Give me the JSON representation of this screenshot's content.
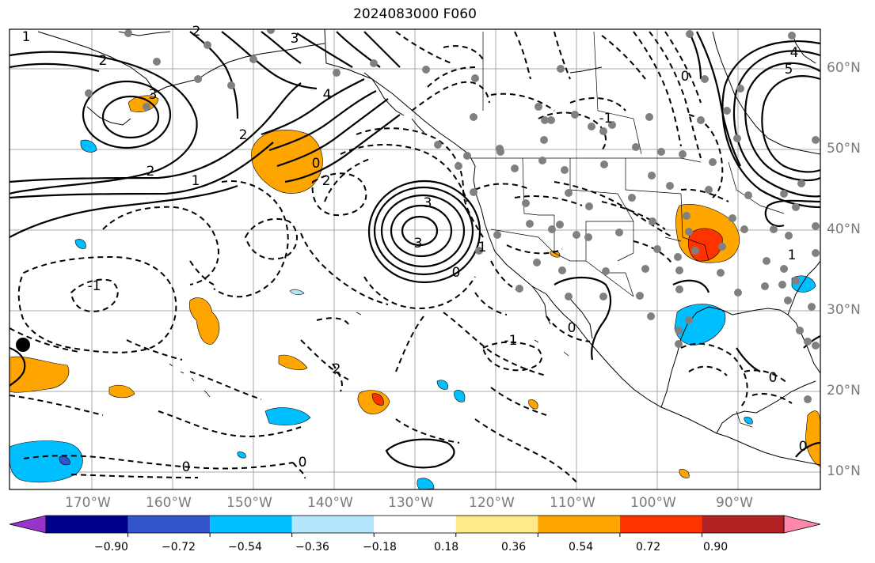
{
  "title": "2024083000 F060",
  "map": {
    "lat_labels": [
      "60°N",
      "50°N",
      "40°N",
      "30°N",
      "20°N",
      "10°N"
    ],
    "lon_labels": [
      "170°W",
      "160°W",
      "150°W",
      "140°W",
      "130°W",
      "120°W",
      "110°W",
      "100°W",
      "90°W"
    ],
    "contour_labels": [
      {
        "text": "1"
      },
      {
        "text": "2"
      },
      {
        "text": "2"
      },
      {
        "text": "3"
      },
      {
        "text": "3"
      },
      {
        "text": "4"
      },
      {
        "text": "2"
      },
      {
        "text": "2"
      },
      {
        "text": "1"
      },
      {
        "text": "0"
      },
      {
        "text": "2"
      },
      {
        "text": "3"
      },
      {
        "text": "3"
      },
      {
        "text": "0"
      },
      {
        "text": "1"
      },
      {
        "text": "-1"
      },
      {
        "text": "2"
      },
      {
        "text": "0"
      },
      {
        "text": "0"
      },
      {
        "text": "-1"
      },
      {
        "text": "0"
      },
      {
        "text": "0"
      },
      {
        "text": "1"
      },
      {
        "text": "0"
      },
      {
        "text": "5"
      },
      {
        "text": "4"
      },
      {
        "text": "0"
      },
      {
        "text": "-1"
      }
    ]
  },
  "colorbar": {
    "ticks": [
      "−0.90",
      "−0.72",
      "−0.54",
      "−0.36",
      "−0.18",
      "0.18",
      "0.36",
      "0.54",
      "0.72",
      "0.90"
    ],
    "colors": [
      "#9933cc",
      "#00008b",
      "#3355cc",
      "#00bfff",
      "#b3e5fc",
      "#ffffff",
      "#ffe98a",
      "#ffa500",
      "#ff3300",
      "#b22222",
      "#ff88aa"
    ]
  }
}
